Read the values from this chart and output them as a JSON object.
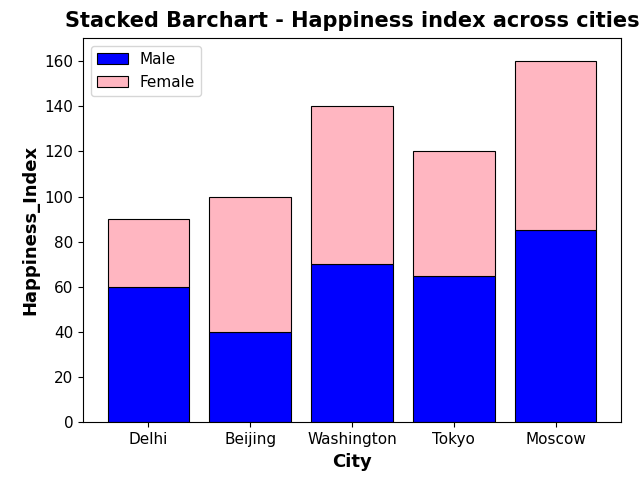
{
  "title": "Stacked Barchart - Happiness index across cities",
  "xlabel": "City",
  "ylabel": "Happiness_Index",
  "categories": [
    "Delhi",
    "Beijing",
    "Washington",
    "Tokyo",
    "Moscow"
  ],
  "male_values": [
    60,
    40,
    70,
    65,
    85
  ],
  "female_values": [
    30,
    60,
    70,
    55,
    75
  ],
  "male_color": "blue",
  "female_color": "lightpink",
  "male_label": "Male",
  "female_label": "Female",
  "ylim": [
    0,
    170
  ],
  "title_fontsize": 15,
  "label_fontsize": 13,
  "tick_fontsize": 11,
  "legend_fontsize": 11,
  "bar_edgecolor": "black",
  "bar_linewidth": 0.8
}
